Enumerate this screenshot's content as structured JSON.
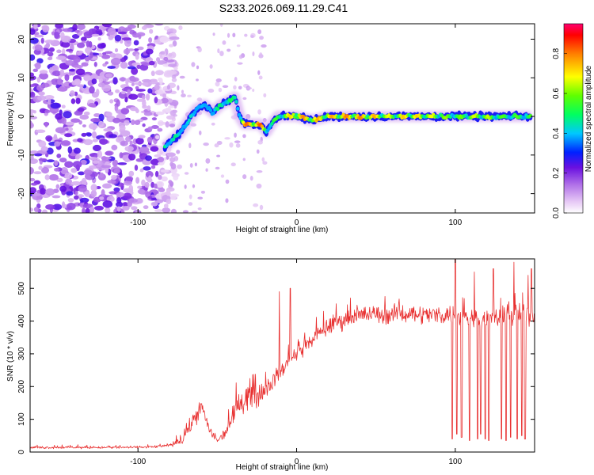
{
  "title": "S233.2026.069.11.29.C41",
  "chart_data": [
    {
      "type": "heatmap",
      "xlabel": "Height of straight line (km)",
      "ylabel": "Frequency (Hz)",
      "xlim": [
        -168,
        150
      ],
      "ylim": [
        -25,
        24
      ],
      "xticks": [
        -100,
        0,
        100
      ],
      "yticks": [
        -20,
        -10,
        0,
        10,
        20
      ],
      "xtick_labels": [
        "-100",
        "0",
        "100"
      ],
      "ytick_labels": [
        "-20",
        "-10",
        "0",
        "10",
        "20"
      ],
      "colorbar": {
        "label": "Normalized spectral amplitude",
        "range": [
          0,
          0.95
        ],
        "ticks": [
          0.0,
          0.2,
          0.4,
          0.6,
          0.8
        ],
        "tick_labels": [
          "0.0",
          "0.2",
          "0.4",
          "0.6",
          "0.8"
        ]
      },
      "ridge": {
        "x": [
          -83,
          -78,
          -73,
          -68,
          -63,
          -58,
          -53,
          -48,
          -43,
          -39,
          -36,
          -33,
          -28,
          -23,
          -19,
          -16,
          -12,
          -5,
          0,
          10,
          20,
          30,
          40,
          50,
          60,
          70,
          80,
          90,
          100,
          110,
          120,
          130,
          140,
          148
        ],
        "y": [
          -8,
          -6,
          -4,
          -1,
          2,
          3,
          1,
          3,
          4,
          5,
          0,
          -2,
          -2,
          -2,
          -4,
          -2,
          0,
          0,
          0,
          -1,
          0,
          0,
          0,
          0,
          0,
          0,
          0,
          0,
          0,
          0,
          0,
          0,
          0,
          0
        ],
        "amplitude": [
          0.6,
          0.5,
          0.5,
          0.45,
          0.5,
          0.4,
          0.45,
          0.55,
          0.6,
          0.5,
          0.6,
          0.85,
          0.9,
          0.9,
          0.6,
          0.55,
          0.6,
          0.75,
          0.85,
          0.8,
          0.8,
          0.85,
          0.85,
          0.8,
          0.7,
          0.8,
          0.75,
          0.7,
          0.6,
          0.7,
          0.7,
          0.6,
          0.6,
          0.6
        ]
      },
      "noise_region_x": [
        -168,
        -80
      ]
    },
    {
      "type": "line",
      "xlabel": "Height of straight line (km)",
      "ylabel": "SNR (10 * v/v)",
      "xlim": [
        -168,
        150
      ],
      "ylim": [
        0,
        590
      ],
      "xticks": [
        -100,
        0,
        100
      ],
      "yticks": [
        0,
        100,
        200,
        300,
        400,
        500
      ],
      "xtick_labels": [
        "-100",
        "0",
        "100"
      ],
      "ytick_labels": [
        "0",
        "100",
        "200",
        "300",
        "400",
        "500"
      ],
      "series": [
        {
          "name": "SNR",
          "color": "#e83030",
          "x": [
            -168,
            -150,
            -130,
            -110,
            -90,
            -80,
            -72,
            -68,
            -64,
            -60,
            -57,
            -54,
            -50,
            -45,
            -40,
            -35,
            -30,
            -25,
            -22,
            -18,
            -15,
            -12,
            -8,
            -4,
            0,
            5,
            10,
            15,
            20,
            30,
            40,
            50,
            60,
            70,
            80,
            90,
            100,
            110,
            120,
            130,
            140,
            150
          ],
          "values": [
            14,
            14,
            14,
            14,
            16,
            20,
            35,
            70,
            110,
            140,
            95,
            60,
            35,
            60,
            110,
            160,
            175,
            170,
            185,
            205,
            215,
            235,
            260,
            280,
            300,
            320,
            345,
            365,
            385,
            405,
            420,
            420,
            420,
            425,
            420,
            420,
            420,
            410,
            410,
            410,
            420,
            420
          ],
          "noise": [
            4,
            4,
            4,
            4,
            4,
            6,
            12,
            22,
            30,
            30,
            22,
            15,
            10,
            20,
            35,
            45,
            45,
            40,
            40,
            30,
            28,
            28,
            28,
            25,
            25,
            25,
            25,
            25,
            30,
            30,
            30,
            30,
            30,
            30,
            30,
            30,
            35,
            35,
            35,
            35,
            35,
            35
          ]
        }
      ],
      "dropouts": {
        "x": [
          98,
          101,
          104,
          109,
          114,
          116,
          119,
          121,
          124,
          129,
          132,
          135,
          139,
          142,
          144
        ],
        "depth": [
          40,
          55,
          45,
          35,
          40,
          55,
          40,
          35,
          50,
          40,
          35,
          45,
          40,
          50,
          40
        ]
      },
      "spikes": {
        "x": [
          -11,
          -4,
          100,
          112,
          124,
          137,
          146,
          148
        ],
        "y": [
          490,
          500,
          590,
          550,
          560,
          580,
          540,
          560
        ]
      }
    }
  ]
}
